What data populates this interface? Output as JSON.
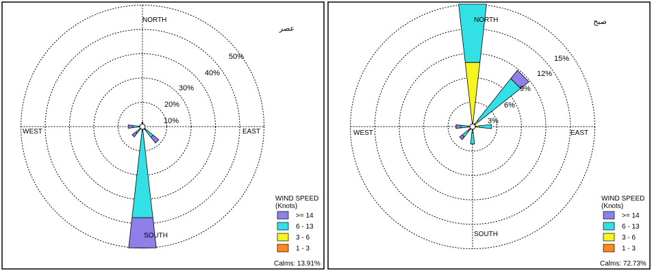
{
  "chart_data": [
    {
      "type": "wind-rose",
      "title": "عصر",
      "directions": [
        "NORTH",
        "EAST",
        "SOUTH",
        "WEST"
      ],
      "ring_labels": [
        "10%",
        "20%",
        "30%",
        "40%",
        "50%"
      ],
      "ring_values": [
        10,
        20,
        30,
        40,
        50
      ],
      "legend_title": "WIND SPEED\n(Knots)",
      "legend_items": [
        {
          "label": ">= 14",
          "color": "#8f7fe8"
        },
        {
          "label": "6 - 13",
          "color": "#33e0e6"
        },
        {
          "label": "3 - 6",
          "color": "#f5f522"
        },
        {
          "label": "1 - 3",
          "color": "#ff8a1c"
        }
      ],
      "calms": "Calms: 13.91%",
      "petals": [
        {
          "direction": "S",
          "segments": {
            "1-3": 0.2,
            "3-6": 0.4,
            "6-13": 36,
            "14+": 12.5
          }
        },
        {
          "direction": "SE",
          "segments": {
            "1-3": 0.2,
            "3-6": 0.3,
            "6-13": 4,
            "14+": 3
          }
        },
        {
          "direction": "SW",
          "segments": {
            "1-3": 0.1,
            "3-6": 0.2,
            "6-13": 2,
            "14+": 2
          }
        },
        {
          "direction": "W",
          "segments": {
            "1-3": 0.1,
            "3-6": 0.2,
            "6-13": 2.5,
            "14+": 2
          }
        },
        {
          "direction": "N",
          "segments": {
            "1-3": 0.1,
            "3-6": 0.1,
            "6-13": 0.3,
            "14+": 0.2
          }
        }
      ]
    },
    {
      "type": "wind-rose",
      "title": "صبح",
      "directions": [
        "NORTH",
        "EAST",
        "SOUTH",
        "WEST"
      ],
      "ring_labels": [
        "3%",
        "6%",
        "9%",
        "12%",
        "15%"
      ],
      "ring_values": [
        3,
        6,
        9,
        12,
        15
      ],
      "legend_title": "WIND SPEED\n(Knots)",
      "legend_items": [
        {
          "label": ">= 14",
          "color": "#8f7fe8"
        },
        {
          "label": "6 - 13",
          "color": "#33e0e6"
        },
        {
          "label": "3 - 6",
          "color": "#f5f522"
        },
        {
          "label": "1 - 3",
          "color": "#ff8a1c"
        }
      ],
      "calms": "Calms: 72.73%",
      "petals": [
        {
          "direction": "N",
          "segments": {
            "1-3": 0.1,
            "3-6": 7.5,
            "6-13": 7.2,
            "14+": 0
          }
        },
        {
          "direction": "NE",
          "segments": {
            "1-3": 0.1,
            "3-6": 0.5,
            "6-13": 6.6,
            "14+": 1.3
          }
        },
        {
          "direction": "E",
          "segments": {
            "1-3": 0.1,
            "3-6": 0.4,
            "6-13": 1.5,
            "14+": 0
          }
        },
        {
          "direction": "S",
          "segments": {
            "1-3": 0.1,
            "3-6": 0.3,
            "6-13": 1.4,
            "14+": 0
          }
        },
        {
          "direction": "SW",
          "segments": {
            "1-3": 0.1,
            "3-6": 0.2,
            "6-13": 1,
            "14+": 0.4
          }
        },
        {
          "direction": "W",
          "segments": {
            "1-3": 0.1,
            "3-6": 0.2,
            "6-13": 0.8,
            "14+": 0.6
          }
        }
      ]
    }
  ]
}
